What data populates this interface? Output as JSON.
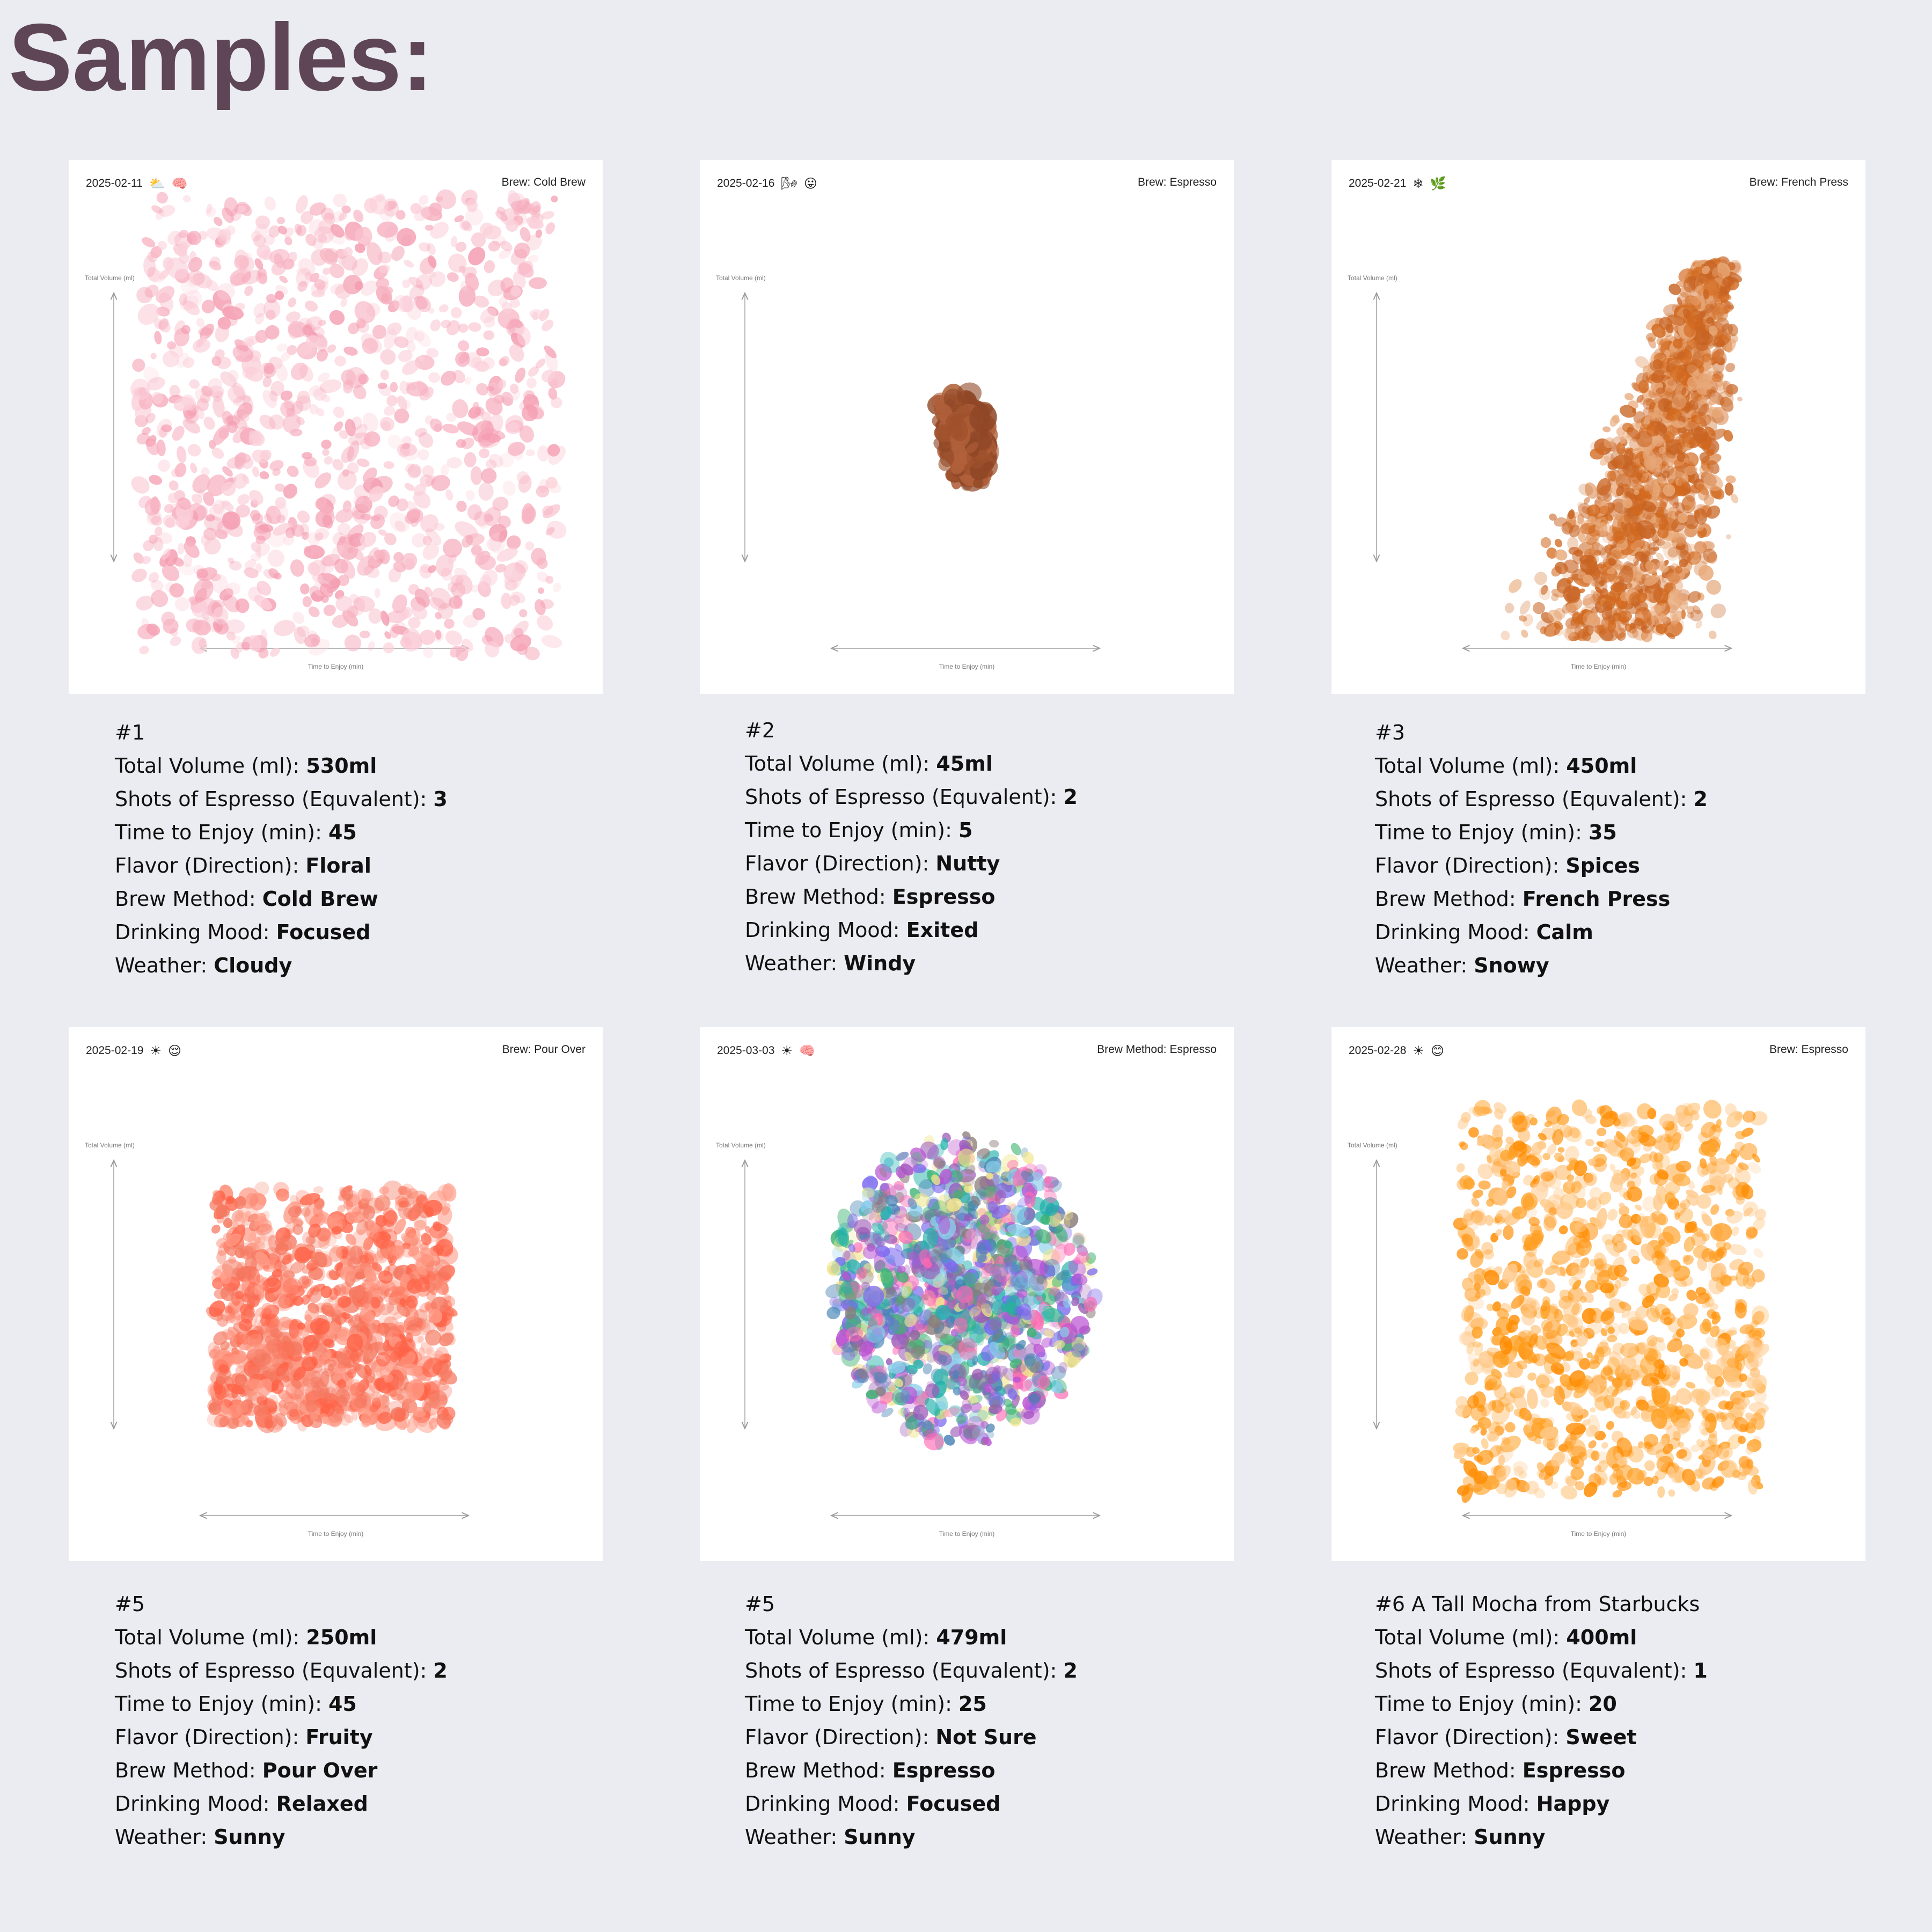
{
  "title": "Samples:",
  "labels": {
    "total_volume": "Total Volume (ml): ",
    "shots": "Shots of Espresso (Equvalent): ",
    "time": "Time to Enjoy (min): ",
    "flavor": "Flavor (Direction): ",
    "brew": "Brew Method: ",
    "mood": "Drinking Mood: ",
    "weather": "Weather: ",
    "y_axis": "Total Volume (ml)",
    "x_axis": "Time to Enjoy (min)"
  },
  "samples": [
    {
      "number": "#1",
      "date": "2025-02-11",
      "weather_icon": "cloud-sun-icon",
      "weather_glyph": "⛅",
      "mood_glyph": "🧠",
      "mood_icon": "brain-icon",
      "card_brew": "Brew: Cold Brew",
      "total_volume": "530ml",
      "shots": "3",
      "time": "45",
      "flavor": "Floral",
      "brew_method": "Cold Brew",
      "mood": "Focused",
      "weather": "Cloudy",
      "colors": [
        "#f7b3c2",
        "#f49cb0",
        "#fbd0da"
      ]
    },
    {
      "number": "#2",
      "date": "2025-02-16",
      "weather_icon": "wind-icon",
      "weather_glyph": "🌬",
      "mood_glyph": "😛",
      "mood_icon": "excited-face-icon",
      "card_brew": "Brew: Espresso",
      "total_volume": "45ml",
      "shots": "2",
      "time": "5",
      "flavor": "Nutty",
      "brew_method": "Espresso",
      "mood": "Exited",
      "weather": "Windy",
      "colors": [
        "#a0522d",
        "#8f4726",
        "#b0603a"
      ]
    },
    {
      "number": "#3",
      "date": "2025-02-21",
      "weather_icon": "snowflake-icon",
      "weather_glyph": "❄",
      "mood_glyph": "🌿",
      "mood_icon": "leaf-icon",
      "card_brew": "Brew: French Press",
      "total_volume": "450ml",
      "shots": "2",
      "time": "35",
      "flavor": "Spices",
      "brew_method": "French Press",
      "mood": "Calm",
      "weather": "Snowy",
      "colors": [
        "#d2691e",
        "#c86423",
        "#e8a878"
      ]
    },
    {
      "number": "#5",
      "date": "2025-02-19",
      "weather_icon": "sun-icon",
      "weather_glyph": "☀",
      "mood_glyph": "😌",
      "mood_icon": "relieved-face-icon",
      "card_brew": "Brew: Pour Over",
      "total_volume": "250ml",
      "shots": "2",
      "time": "45",
      "flavor": "Fruity",
      "brew_method": "Pour Over",
      "mood": "Relaxed",
      "weather": "Sunny",
      "colors": [
        "#ff6347",
        "#f57a62",
        "#ff9a85"
      ]
    },
    {
      "number": "#5",
      "date": "2025-03-03",
      "weather_icon": "sun-icon",
      "weather_glyph": "☀",
      "mood_glyph": "🧠",
      "mood_icon": "brain-icon",
      "card_brew": "Brew Method: Espresso",
      "total_volume": "479ml",
      "shots": "2",
      "time": "25",
      "flavor": "Not Sure",
      "brew_method": "Espresso",
      "mood": "Focused",
      "weather": "Sunny",
      "colors": [
        "#9b59b6",
        "#3cb371",
        "#4682b4",
        "#ff69b4",
        "#f0e68c",
        "#20b2aa",
        "#8b7d7b",
        "#ba55d3",
        "#7b68ee",
        "#87ceeb"
      ]
    },
    {
      "number": "#6 A Tall Mocha from Starbucks",
      "date": "2025-02-28",
      "weather_icon": "sun-icon",
      "weather_glyph": "☀",
      "mood_glyph": "😊",
      "mood_icon": "smiling-face-icon",
      "card_brew": "Brew: Espresso",
      "total_volume": "400ml",
      "shots": "1",
      "time": "20",
      "flavor": "Sweet",
      "brew_method": "Espresso",
      "mood": "Happy",
      "weather": "Sunny",
      "colors": [
        "#ff8c00",
        "#ffa126",
        "#ffc98a"
      ]
    }
  ]
}
